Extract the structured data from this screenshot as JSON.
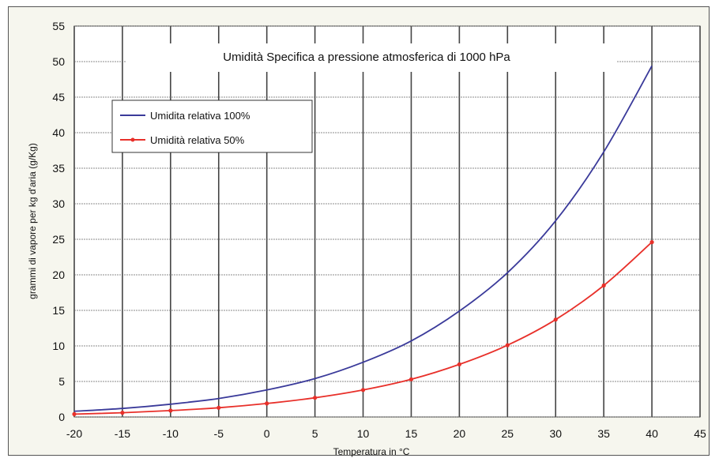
{
  "chart_data": {
    "type": "line",
    "title": "Umidità Specifica a pressione atmosferica di 1000 hPa",
    "xlabel": "Temperatura in °C",
    "ylabel": "grammi di vapore per kg d'aria (g/Kg)",
    "xlim": [
      -20,
      45
    ],
    "ylim": [
      0,
      55
    ],
    "xticks": [
      -20,
      -15,
      -10,
      -5,
      0,
      5,
      10,
      15,
      20,
      25,
      30,
      35,
      40,
      45
    ],
    "yticks": [
      0,
      5,
      10,
      15,
      20,
      25,
      30,
      35,
      40,
      45,
      50,
      55
    ],
    "grid": true,
    "legend_position": "top-left",
    "x": [
      -20,
      -15,
      -10,
      -5,
      0,
      5,
      10,
      15,
      20,
      25,
      30,
      35,
      40
    ],
    "series": [
      {
        "name": "Umidita relativa 100%",
        "color": "#3a3a9a",
        "markers": false,
        "values": [
          0.8,
          1.2,
          1.8,
          2.6,
          3.8,
          5.4,
          7.7,
          10.7,
          14.9,
          20.3,
          27.6,
          37.3,
          49.4
        ]
      },
      {
        "name": "Umidità relativa 50%",
        "color": "#e8302a",
        "markers": true,
        "values": [
          0.4,
          0.6,
          0.9,
          1.3,
          1.9,
          2.7,
          3.8,
          5.3,
          7.4,
          10.1,
          13.7,
          18.5,
          24.6
        ]
      }
    ]
  }
}
